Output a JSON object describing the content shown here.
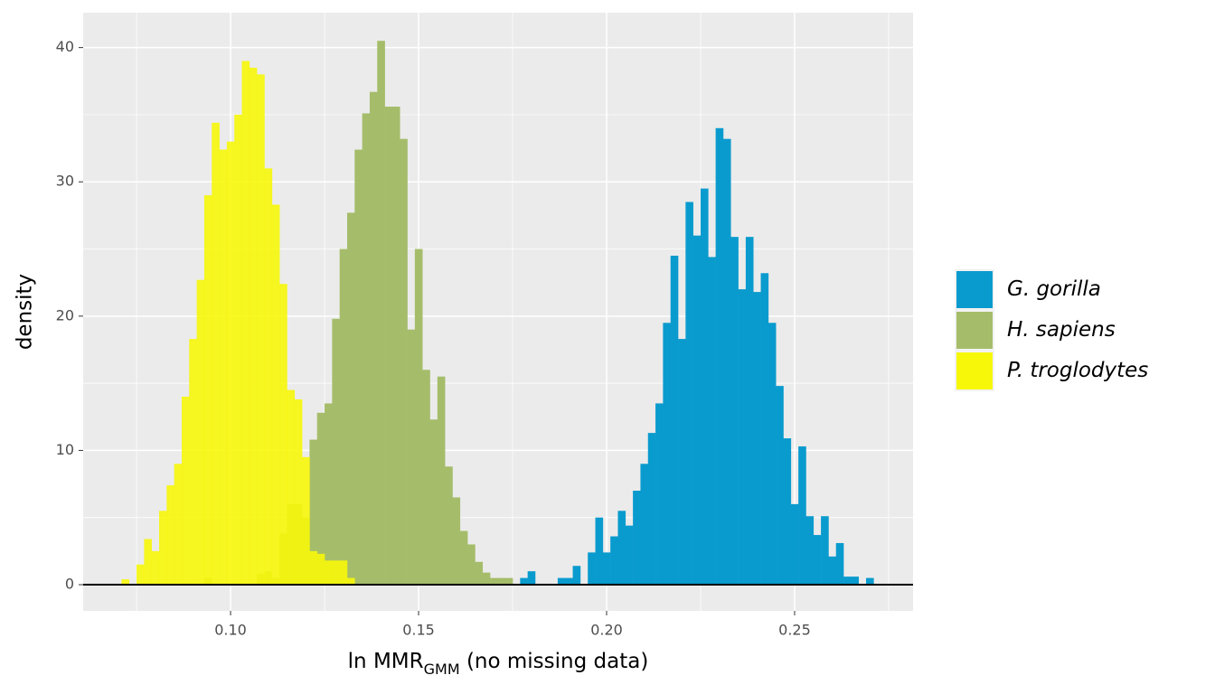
{
  "chart_data": {
    "type": "histogram",
    "xlabel": {
      "prefix": "ln MMR",
      "sub": "GMM",
      "suffix": " (no missing data)"
    },
    "ylabel": "density",
    "xlim": [
      0.0608,
      0.2815
    ],
    "ylim": [
      -1.95,
      42.6
    ],
    "xticks": [
      {
        "value": 0.1,
        "label": "0.10"
      },
      0.15,
      {
        "value": 0.2,
        "label": "0.20"
      },
      0.25
    ],
    "yticks": [
      0,
      10,
      20,
      30,
      40
    ],
    "grid": true,
    "hline": 0,
    "legend": "right",
    "series": [
      {
        "name": "G. gorilla",
        "color": "#0a9bce",
        "bins": [
          0.177,
          0.179,
          0.181,
          0.183,
          0.185,
          0.187,
          0.189,
          0.191,
          0.193,
          0.195,
          0.197,
          0.199,
          0.201,
          0.203,
          0.205,
          0.207,
          0.209,
          0.211,
          0.213,
          0.215,
          0.217,
          0.219,
          0.221,
          0.223,
          0.225,
          0.227,
          0.229,
          0.231,
          0.233,
          0.235,
          0.237,
          0.239,
          0.241,
          0.243,
          0.245,
          0.247,
          0.249,
          0.251,
          0.253,
          0.255,
          0.257,
          0.259,
          0.261,
          0.263,
          0.265,
          0.267,
          0.269,
          0.271
        ],
        "values": [
          0.5,
          1,
          0,
          0,
          0,
          0.5,
          0.5,
          1.4,
          0,
          2.4,
          5,
          2.4,
          3.6,
          5.5,
          4.4,
          7,
          9,
          11.3,
          13.5,
          19.5,
          24.5,
          18.3,
          28.5,
          26,
          29.5,
          24.4,
          34,
          33.2,
          25.9,
          22,
          25.9,
          21.8,
          23.2,
          19.5,
          14.8,
          10.9,
          6,
          10.3,
          5.1,
          3.7,
          5.1,
          2.1,
          3.1,
          0.6,
          0.6,
          0,
          0.5
        ]
      },
      {
        "name": "H. sapiens",
        "color": "#a5bd6a",
        "bins": [
          0.093,
          0.095,
          0.097,
          0.099,
          0.101,
          0.103,
          0.105,
          0.107,
          0.109,
          0.111,
          0.113,
          0.115,
          0.117,
          0.119,
          0.121,
          0.123,
          0.125,
          0.127,
          0.129,
          0.131,
          0.133,
          0.135,
          0.137,
          0.139,
          0.141,
          0.143,
          0.145,
          0.147,
          0.149,
          0.151,
          0.153,
          0.155,
          0.157,
          0.159,
          0.161,
          0.163,
          0.165,
          0.167,
          0.169,
          0.171,
          0.173,
          0.175
        ],
        "values": [
          0.5,
          0,
          0,
          0,
          0,
          0,
          0,
          0.8,
          1,
          0.5,
          3.8,
          6,
          6,
          5,
          10.8,
          12.8,
          13.5,
          19.8,
          25,
          27.7,
          32.4,
          35.1,
          36.7,
          40.5,
          35.6,
          35.6,
          33.2,
          19,
          25,
          16,
          12.3,
          15.5,
          8.8,
          6.5,
          4,
          3,
          1.7,
          0.9,
          0.5,
          0.5,
          0.5
        ]
      },
      {
        "name": "P. troglodytes",
        "color": "#f7f70a",
        "bins": [
          0.071,
          0.073,
          0.075,
          0.077,
          0.079,
          0.081,
          0.083,
          0.085,
          0.087,
          0.089,
          0.091,
          0.093,
          0.095,
          0.097,
          0.099,
          0.101,
          0.103,
          0.105,
          0.107,
          0.109,
          0.111,
          0.113,
          0.115,
          0.117,
          0.119,
          0.121,
          0.123,
          0.125,
          0.127,
          0.129,
          0.131,
          0.133
        ],
        "values": [
          0.4,
          0,
          1.5,
          3.4,
          2.5,
          5.5,
          7.4,
          9,
          14,
          18.3,
          22.7,
          29,
          34.4,
          32.4,
          33,
          35,
          39,
          38.5,
          38,
          31,
          28.3,
          22.4,
          14.5,
          13.8,
          9.5,
          2.5,
          2.3,
          1.8,
          1.8,
          1.8,
          0.5
        ]
      }
    ]
  }
}
